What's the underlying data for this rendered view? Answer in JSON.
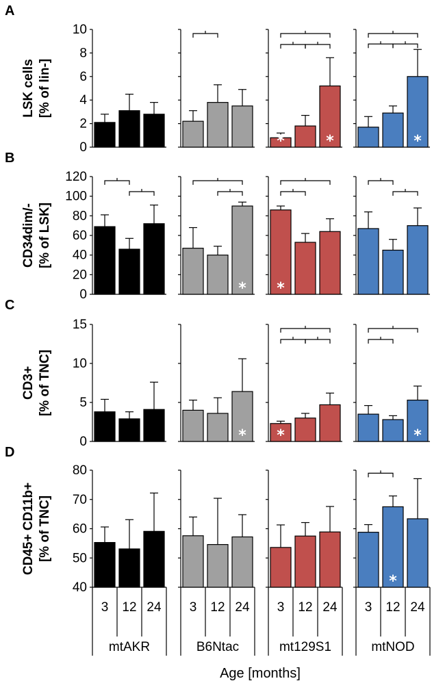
{
  "x_axis_title": "Age [months]",
  "categories": [
    "3",
    "12",
    "24"
  ],
  "strains": [
    {
      "name": "mtAKR",
      "color": "#000000"
    },
    {
      "name": "B6Ntac",
      "color": "#a0a0a0"
    },
    {
      "name": "mt129S1",
      "color": "#c0504d"
    },
    {
      "name": "mtNOD",
      "color": "#4a7ebf"
    }
  ],
  "star_symbol": "*",
  "chart_data": [
    {
      "panel": "A",
      "type": "bar",
      "ylabel_lines": [
        "LSK cells",
        "[% of lin-]"
      ],
      "ylim": [
        0,
        10
      ],
      "yticks": [
        "0",
        "2",
        "4",
        "6",
        "8",
        "10"
      ],
      "categories": [
        "3",
        "12",
        "24"
      ],
      "series": [
        {
          "name": "mtAKR",
          "values": [
            2.1,
            3.1,
            2.8
          ],
          "errors": [
            0.7,
            1.4,
            1.0
          ],
          "stars": [],
          "brackets": []
        },
        {
          "name": "B6Ntac",
          "values": [
            2.2,
            3.8,
            3.5
          ],
          "errors": [
            0.9,
            1.5,
            1.4
          ],
          "stars": [],
          "brackets": [
            [
              0,
              1
            ]
          ]
        },
        {
          "name": "mt129S1",
          "values": [
            0.8,
            1.8,
            5.2
          ],
          "errors": [
            0.4,
            0.9,
            2.4
          ],
          "stars": [
            0,
            2
          ],
          "brackets": [
            [
              0,
              2
            ],
            [
              0,
              1
            ],
            [
              1,
              2
            ]
          ]
        },
        {
          "name": "mtNOD",
          "values": [
            1.7,
            2.9,
            6.0
          ],
          "errors": [
            0.9,
            0.6,
            2.3
          ],
          "stars": [
            2
          ],
          "brackets": [
            [
              0,
              2
            ],
            [
              0,
              1
            ],
            [
              1,
              2
            ]
          ]
        }
      ]
    },
    {
      "panel": "B",
      "type": "bar",
      "ylabel_lines": [
        "CD34dim/-",
        "[% of LSK]"
      ],
      "ylim": [
        0,
        120
      ],
      "yticks": [
        "0",
        "20",
        "40",
        "60",
        "80",
        "100",
        "120"
      ],
      "categories": [
        "3",
        "12",
        "24"
      ],
      "series": [
        {
          "name": "mtAKR",
          "values": [
            69,
            46,
            72
          ],
          "errors": [
            12,
            11,
            19
          ],
          "stars": [],
          "brackets": [
            [
              0,
              1
            ],
            [
              1,
              2
            ]
          ]
        },
        {
          "name": "B6Ntac",
          "values": [
            47,
            40,
            90
          ],
          "errors": [
            21,
            9,
            4
          ],
          "stars": [
            2
          ],
          "brackets": [
            [
              0,
              2
            ],
            [
              1,
              2
            ]
          ]
        },
        {
          "name": "mt129S1",
          "values": [
            86,
            53,
            64
          ],
          "errors": [
            4,
            9,
            13
          ],
          "stars": [
            0
          ],
          "brackets": [
            [
              0,
              2
            ],
            [
              0,
              1
            ]
          ]
        },
        {
          "name": "mtNOD",
          "values": [
            67,
            45,
            70
          ],
          "errors": [
            17,
            11,
            18
          ],
          "stars": [],
          "brackets": [
            [
              0,
              1
            ],
            [
              1,
              2
            ]
          ]
        }
      ]
    },
    {
      "panel": "C",
      "type": "bar",
      "ylabel_lines": [
        "CD3+",
        "[% of TNC]"
      ],
      "ylim": [
        0,
        15
      ],
      "yticks": [
        "0",
        "5",
        "10",
        "15"
      ],
      "categories": [
        "3",
        "12",
        "24"
      ],
      "series": [
        {
          "name": "mtAKR",
          "values": [
            3.8,
            2.9,
            4.1
          ],
          "errors": [
            1.6,
            0.9,
            3.5
          ],
          "stars": [],
          "brackets": []
        },
        {
          "name": "B6Ntac",
          "values": [
            4.0,
            3.6,
            6.4
          ],
          "errors": [
            1.3,
            2.0,
            4.2
          ],
          "stars": [
            2
          ],
          "brackets": []
        },
        {
          "name": "mt129S1",
          "values": [
            2.3,
            3.0,
            4.7
          ],
          "errors": [
            0.3,
            0.6,
            1.5
          ],
          "stars": [
            0
          ],
          "brackets": [
            [
              0,
              2
            ],
            [
              0,
              1
            ],
            [
              1,
              2
            ]
          ]
        },
        {
          "name": "mtNOD",
          "values": [
            3.5,
            2.8,
            5.3
          ],
          "errors": [
            1.1,
            0.5,
            1.8
          ],
          "stars": [
            2
          ],
          "brackets": [
            [
              0,
              2
            ],
            [
              0,
              1
            ]
          ]
        }
      ]
    },
    {
      "panel": "D",
      "type": "bar",
      "ylabel_lines": [
        "CD45+ CD11b+",
        "[% of TNC]"
      ],
      "ylim": [
        40,
        80
      ],
      "yticks": [
        "40",
        "50",
        "60",
        "70",
        "80"
      ],
      "categories": [
        "3",
        "12",
        "24"
      ],
      "series": [
        {
          "name": "mtAKR",
          "values": [
            55.3,
            53.1,
            59.1
          ],
          "errors": [
            5.3,
            10.0,
            13.1
          ],
          "stars": [],
          "brackets": []
        },
        {
          "name": "B6Ntac",
          "values": [
            57.6,
            54.6,
            57.2
          ],
          "errors": [
            6.4,
            15.8,
            7.6
          ],
          "stars": [],
          "brackets": []
        },
        {
          "name": "mt129S1",
          "values": [
            53.6,
            57.5,
            58.9
          ],
          "errors": [
            7.7,
            4.6,
            8.7
          ],
          "stars": [],
          "brackets": []
        },
        {
          "name": "mtNOD",
          "values": [
            58.8,
            67.5,
            63.4
          ],
          "errors": [
            2.6,
            3.7,
            13.7
          ],
          "stars": [
            1
          ],
          "brackets": [
            [
              0,
              1
            ]
          ]
        }
      ]
    }
  ]
}
